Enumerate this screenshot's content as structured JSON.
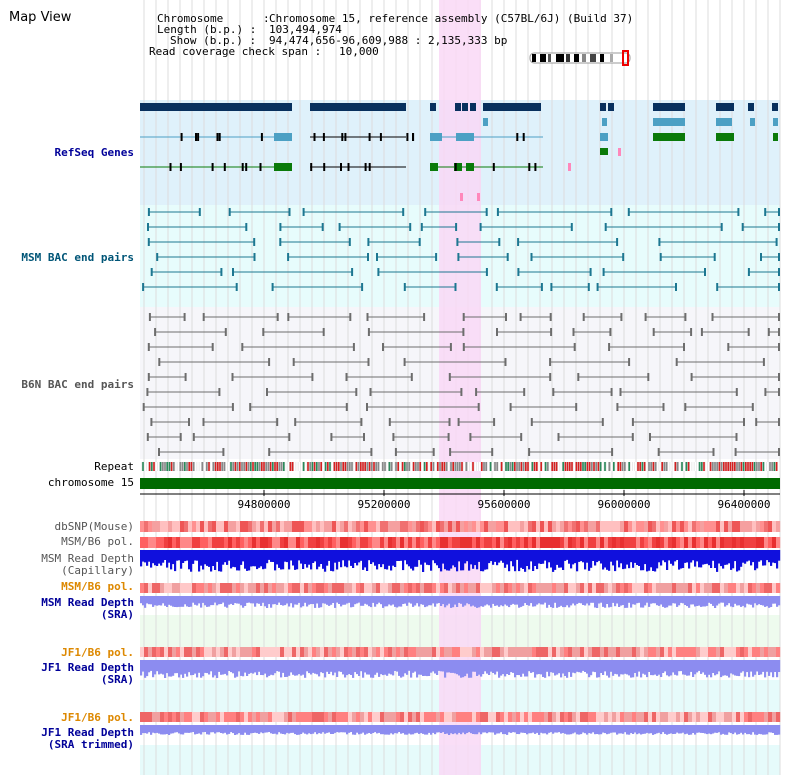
{
  "view_title": "Map View",
  "info": {
    "chromosome_key": "Chromosome      :",
    "chromosome_val": "Chromosome 15, reference assembly (C57BL/6J) (Build 37)",
    "length_key": "Length (b.p.) :",
    "length_val": "103,494,974",
    "show_key": "Show (b.p.) :",
    "show_val": "94,474,656-96,609,988 : 2,135,333 bp",
    "coverage_key": "Read coverage check span :",
    "coverage_val": "10,000"
  },
  "tracks": {
    "refseq": "RefSeq Genes",
    "msm_bac": "MSM BAC end pairs",
    "b6n_bac": "B6N BAC end pairs",
    "repeat": "Repeat",
    "chromosome": "chromosome 15",
    "dbsnp": "dbSNP(Mouse)",
    "msm_b6_pol_1": "MSM/B6 pol.",
    "msm_depth_cap_1": "MSM Read Depth",
    "msm_depth_cap_2": "(Capillary)",
    "msm_b6_pol_2": "MSM/B6 pol.",
    "msm_depth_sra_1": "MSM Read Depth",
    "msm_depth_sra_2": "(SRA)",
    "jf1_b6_pol_1": "JF1/B6 pol.",
    "jf1_depth_sra_1": "JF1 Read Depth",
    "jf1_depth_sra_2": "(SRA)",
    "jf1_b6_pol_2": "JF1/B6 pol.",
    "jf1_depth_trim_1": "JF1 Read Depth",
    "jf1_depth_trim_2": "(SRA trimmed)"
  },
  "axis_ticks": [
    "94800000",
    "95200000",
    "95600000",
    "96000000",
    "96400000"
  ],
  "colors": {
    "refseq_bg": "#dff1fb",
    "msm_bg": "#e7fcfc",
    "b6n_bg": "#f6f6fa",
    "highlight": "#f9d8f6",
    "refseq_dark": "#08305e",
    "refseq_teal": "#4ca0c4",
    "refseq_green": "#0a7a0a",
    "msm_feature": "#1d7791",
    "b6n_feature": "#6d6d6d",
    "chrom_bar": "#006a00",
    "red_track": "#ee4444",
    "blue_depth": "#1010dd",
    "lilac_depth": "#8c8cf0",
    "label_blue": "#000099",
    "label_teal": "#005577",
    "label_gray": "#555555",
    "label_orange": "#dd8800"
  }
}
